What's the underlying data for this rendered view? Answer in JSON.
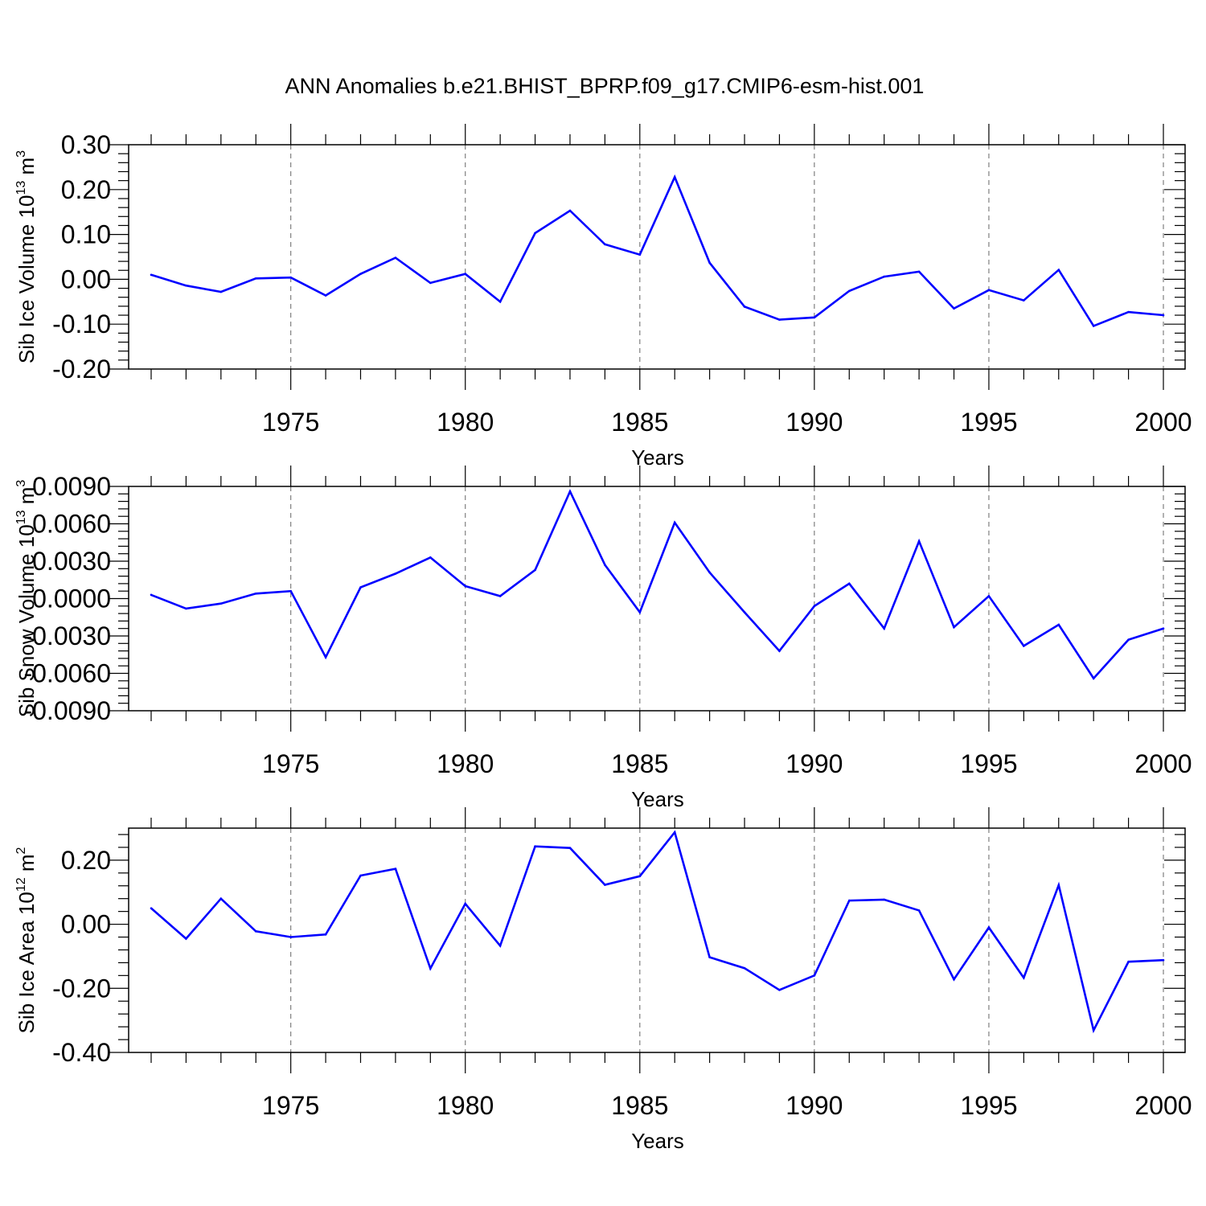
{
  "title": "ANN Anomalies b.e21.BHIST_BPRP.f09_g17.CMIP6-esm-hist.001",
  "line_color": "#0000ff",
  "chart_data": [
    {
      "type": "line",
      "ylabel_main": "Sib Ice Volume 10",
      "ylabel_exp": "13",
      "ylabel_unit": " m",
      "ylabel_unit_exp": "3",
      "xlabel": "Years",
      "xlim": [
        1971,
        2000
      ],
      "ylim": [
        -0.2,
        0.3
      ],
      "yticks": [
        -0.2,
        -0.1,
        0.0,
        0.1,
        0.2,
        0.3
      ],
      "yticklabels": [
        "-0.20",
        "-0.10",
        "0.00",
        "0.10",
        "0.20",
        "0.30"
      ],
      "xticks": [
        1975,
        1980,
        1985,
        1990,
        1995,
        2000
      ],
      "xticklabels": [
        "1975",
        "1980",
        "1985",
        "1990",
        "1995",
        "2000"
      ],
      "x": [
        1971,
        1972,
        1973,
        1974,
        1975,
        1976,
        1977,
        1978,
        1979,
        1980,
        1981,
        1982,
        1983,
        1984,
        1985,
        1986,
        1987,
        1988,
        1989,
        1990,
        1991,
        1992,
        1993,
        1994,
        1995,
        1996,
        1997,
        1998,
        1999,
        2000
      ],
      "values": [
        0.01,
        -0.014,
        -0.028,
        0.002,
        0.004,
        -0.036,
        0.012,
        0.048,
        -0.008,
        0.012,
        -0.05,
        0.103,
        0.153,
        0.078,
        0.055,
        0.228,
        0.037,
        -0.061,
        -0.09,
        -0.085,
        -0.026,
        0.006,
        0.017,
        -0.065,
        -0.024,
        -0.047,
        0.021,
        -0.104,
        -0.073,
        -0.08
      ]
    },
    {
      "type": "line",
      "ylabel_main": "Sib Snow Volume 10",
      "ylabel_exp": "13",
      "ylabel_unit": " m",
      "ylabel_unit_exp": "3",
      "xlabel": "Years",
      "xlim": [
        1971,
        2000
      ],
      "ylim": [
        -0.009,
        0.009
      ],
      "yticks": [
        -0.009,
        -0.006,
        -0.003,
        0.0,
        0.003,
        0.006,
        0.009
      ],
      "yticklabels": [
        "-0.0090",
        "-0.0060",
        "-0.0030",
        "0.0000",
        "0.0030",
        "0.0060",
        "0.0090"
      ],
      "xticks": [
        1975,
        1980,
        1985,
        1990,
        1995,
        2000
      ],
      "xticklabels": [
        "1975",
        "1980",
        "1985",
        "1990",
        "1995",
        "2000"
      ],
      "x": [
        1971,
        1972,
        1973,
        1974,
        1975,
        1976,
        1977,
        1978,
        1979,
        1980,
        1981,
        1982,
        1983,
        1984,
        1985,
        1986,
        1987,
        1988,
        1989,
        1990,
        1991,
        1992,
        1993,
        1994,
        1995,
        1996,
        1997,
        1998,
        1999,
        2000
      ],
      "values": [
        0.0003,
        -0.0008,
        -0.0004,
        0.0004,
        0.0006,
        -0.0047,
        0.0009,
        0.002,
        0.0033,
        0.001,
        0.0002,
        0.0023,
        0.0086,
        0.0027,
        -0.0011,
        0.0061,
        0.0021,
        -0.0011,
        -0.0042,
        -0.0006,
        0.0012,
        -0.0024,
        0.0046,
        -0.0023,
        0.0002,
        -0.0038,
        -0.0021,
        -0.0064,
        -0.0033,
        -0.0024
      ]
    },
    {
      "type": "line",
      "ylabel_main": "Sib Ice Area 10",
      "ylabel_exp": "12",
      "ylabel_unit": " m",
      "ylabel_unit_exp": "2",
      "xlabel": "Years",
      "xlim": [
        1971,
        2000
      ],
      "ylim": [
        -0.4,
        0.3
      ],
      "yticks": [
        -0.4,
        -0.2,
        0.0,
        0.2
      ],
      "yticklabels": [
        "-0.40",
        "-0.20",
        "0.00",
        "0.20"
      ],
      "xticks": [
        1975,
        1980,
        1985,
        1990,
        1995,
        2000
      ],
      "xticklabels": [
        "1975",
        "1980",
        "1985",
        "1990",
        "1995",
        "2000"
      ],
      "x": [
        1971,
        1972,
        1973,
        1974,
        1975,
        1976,
        1977,
        1978,
        1979,
        1980,
        1981,
        1982,
        1983,
        1984,
        1985,
        1986,
        1987,
        1988,
        1989,
        1990,
        1991,
        1992,
        1993,
        1994,
        1995,
        1996,
        1997,
        1998,
        1999,
        2000
      ],
      "values": [
        0.05,
        -0.045,
        0.08,
        -0.022,
        -0.04,
        -0.032,
        0.152,
        0.173,
        -0.138,
        0.064,
        -0.067,
        0.243,
        0.238,
        0.123,
        0.15,
        0.287,
        -0.103,
        -0.137,
        -0.205,
        -0.16,
        0.074,
        0.077,
        0.043,
        -0.172,
        -0.01,
        -0.167,
        0.122,
        -0.331,
        -0.117,
        -0.112
      ]
    }
  ]
}
